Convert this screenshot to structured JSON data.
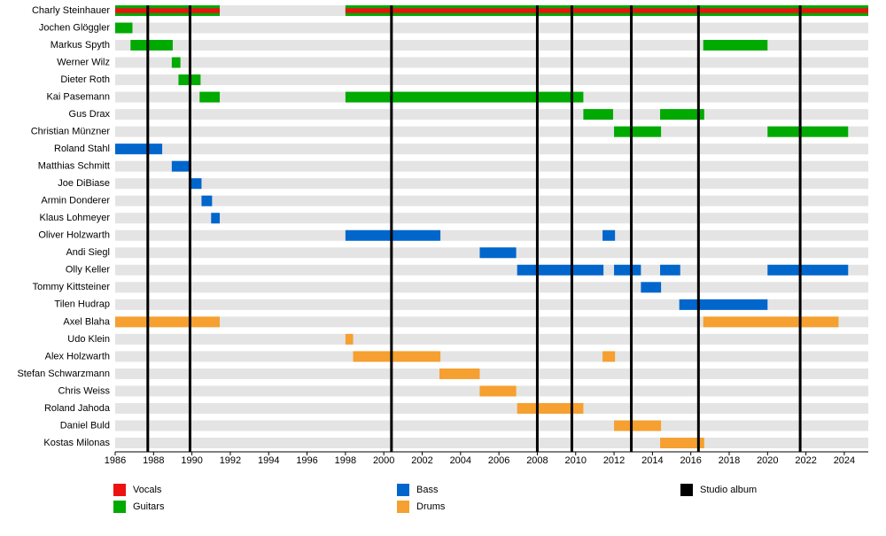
{
  "chart_data": {
    "type": "timeline",
    "categories": [
      "Charly Steinhauer",
      "Jochen Glöggler",
      "Markus Spyth",
      "Werner Wilz",
      "Dieter Roth",
      "Kai Pasemann",
      "Gus Drax",
      "Christian Münzner",
      "Roland Stahl",
      "Matthias Schmitt",
      "Joe DiBiase",
      "Armin Donderer",
      "Klaus Lohmeyer",
      "Oliver Holzwarth",
      "Andi Siegl",
      "Olly Keller",
      "Tommy Kittsteiner",
      "Tilen Hudrap",
      "Axel Blaha",
      "Udo Klein",
      "Alex Holzwarth",
      "Stefan Schwarzmann",
      "Chris Weiss",
      "Roland Jahoda",
      "Daniel Buld",
      "Kostas Milonas"
    ],
    "xlim": [
      1986,
      2025.25
    ],
    "xticks": [
      1986,
      1988,
      1990,
      1992,
      1994,
      1996,
      1998,
      2000,
      2002,
      2004,
      2006,
      2008,
      2010,
      2012,
      2014,
      2016,
      2018,
      2020,
      2022,
      2024
    ],
    "series": [
      {
        "name": "Vocals",
        "color": "#ee1111",
        "bars": [
          {
            "member": "Charly Steinhauer",
            "start": 1986,
            "end": 1991.45
          },
          {
            "member": "Charly Steinhauer",
            "start": 1998,
            "end": 2025.25
          }
        ]
      },
      {
        "name": "Guitars",
        "color": "#00aa00",
        "bars": [
          {
            "member": "Charly Steinhauer",
            "start": 1986,
            "end": 1991.45
          },
          {
            "member": "Charly Steinhauer",
            "start": 1998,
            "end": 2025.25
          },
          {
            "member": "Jochen Glöggler",
            "start": 1986,
            "end": 1986.9
          },
          {
            "member": "Markus Spyth",
            "start": 1986.8,
            "end": 1989
          },
          {
            "member": "Markus Spyth",
            "start": 2016.65,
            "end": 2020
          },
          {
            "member": "Werner Wilz",
            "start": 1988.95,
            "end": 1989.4
          },
          {
            "member": "Dieter Roth",
            "start": 1989.3,
            "end": 1990.45
          },
          {
            "member": "Kai Pasemann",
            "start": 1990.4,
            "end": 1991.45
          },
          {
            "member": "Kai Pasemann",
            "start": 1998,
            "end": 2010.4
          },
          {
            "member": "Gus Drax",
            "start": 2010.4,
            "end": 2011.95
          },
          {
            "member": "Gus Drax",
            "start": 2014.4,
            "end": 2016.7
          },
          {
            "member": "Christian Münzner",
            "start": 2012,
            "end": 2014.45
          },
          {
            "member": "Christian Münzner",
            "start": 2020,
            "end": 2024.2
          }
        ]
      },
      {
        "name": "Bass",
        "color": "#0066cc",
        "bars": [
          {
            "member": "Roland Stahl",
            "start": 1986,
            "end": 1988.45
          },
          {
            "member": "Matthias Schmitt",
            "start": 1988.95,
            "end": 1989.9
          },
          {
            "member": "Joe DiBiase",
            "start": 1989.9,
            "end": 1990.5
          },
          {
            "member": "Armin Donderer",
            "start": 1990.5,
            "end": 1991.05
          },
          {
            "member": "Klaus Lohmeyer",
            "start": 1991,
            "end": 1991.45
          },
          {
            "member": "Oliver Holzwarth",
            "start": 1998,
            "end": 2002.95
          },
          {
            "member": "Oliver Holzwarth",
            "start": 2011.4,
            "end": 2012.05
          },
          {
            "member": "Andi Siegl",
            "start": 2005,
            "end": 2006.9
          },
          {
            "member": "Olly Keller",
            "start": 2006.95,
            "end": 2011.45
          },
          {
            "member": "Olly Keller",
            "start": 2012,
            "end": 2013.4
          },
          {
            "member": "Olly Keller",
            "start": 2014.4,
            "end": 2015.45
          },
          {
            "member": "Olly Keller",
            "start": 2020,
            "end": 2024.2
          },
          {
            "member": "Tommy Kittsteiner",
            "start": 2013.4,
            "end": 2014.45
          },
          {
            "member": "Tilen Hudrap",
            "start": 2015.4,
            "end": 2020
          }
        ]
      },
      {
        "name": "Drums",
        "color": "#f5a030",
        "bars": [
          {
            "member": "Axel Blaha",
            "start": 1986,
            "end": 1991.45
          },
          {
            "member": "Axel Blaha",
            "start": 2016.65,
            "end": 2023.7
          },
          {
            "member": "Udo Klein",
            "start": 1998,
            "end": 1998.4
          },
          {
            "member": "Alex Holzwarth",
            "start": 1998.4,
            "end": 2002.95
          },
          {
            "member": "Alex Holzwarth",
            "start": 2011.4,
            "end": 2012.05
          },
          {
            "member": "Stefan Schwarzmann",
            "start": 2002.9,
            "end": 2005
          },
          {
            "member": "Chris Weiss",
            "start": 2005,
            "end": 2006.9
          },
          {
            "member": "Roland Jahoda",
            "start": 2006.95,
            "end": 2010.4
          },
          {
            "member": "Daniel Buld",
            "start": 2012,
            "end": 2014.45
          },
          {
            "member": "Kostas Milonas",
            "start": 2014.4,
            "end": 2016.7
          }
        ]
      },
      {
        "name": "Studio album",
        "color": "#000000",
        "x": [
          1987.7,
          1989.9,
          2000.4,
          2008,
          2009.8,
          2012.9,
          2016.4,
          2021.7
        ]
      }
    ]
  }
}
